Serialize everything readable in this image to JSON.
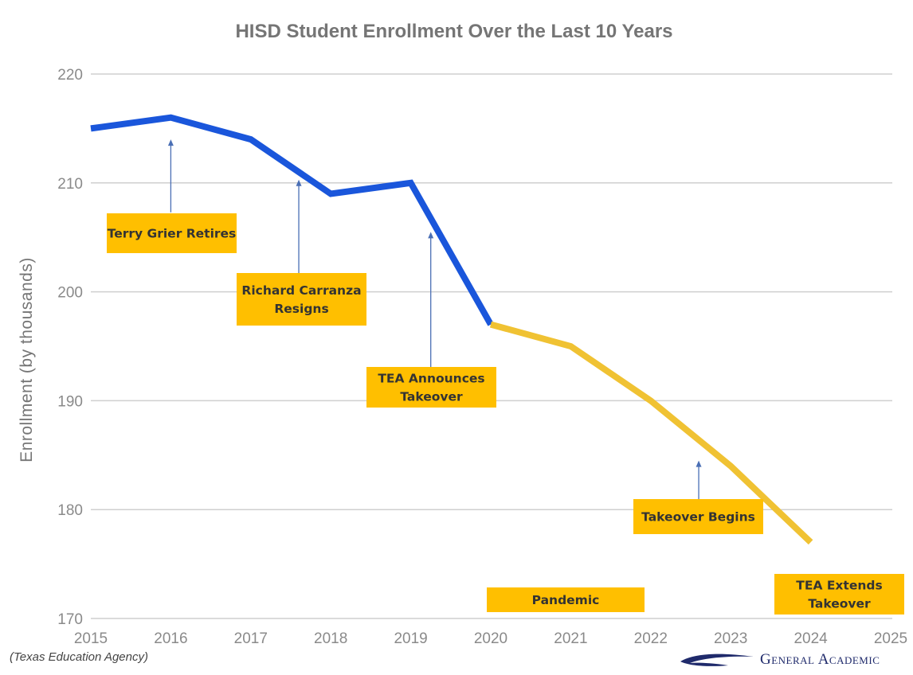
{
  "colors": {
    "pre_takeover_line": "#1a56db",
    "post_takeover_line": "#f0c233",
    "annotation_box": "#ffbf00",
    "arrow": "#4a6fb5",
    "grid": "#cfcfcf",
    "logo": "#1f2a6b"
  },
  "chart_data": {
    "type": "line",
    "title": "HISD Student Enrollment Over the Last 10 Years",
    "xlabel": "",
    "ylabel": "Enrollment (by thousands)",
    "xlim": [
      2015,
      2025
    ],
    "ylim": [
      170,
      220
    ],
    "x_ticks": [
      "2015",
      "2016",
      "2017",
      "2018",
      "2019",
      "2020",
      "2021",
      "2022",
      "2023",
      "2024",
      "2025"
    ],
    "y_ticks": [
      "170",
      "180",
      "190",
      "200",
      "210",
      "220"
    ],
    "grid": true,
    "series": [
      {
        "color_key": "pre_takeover_line",
        "x": [
          2015,
          2016,
          2017,
          2018,
          2019,
          2020
        ],
        "y": [
          215,
          216,
          214,
          209,
          210,
          197
        ]
      },
      {
        "color_key": "post_takeover_line",
        "x": [
          2020,
          2021,
          2022,
          2023,
          2024
        ],
        "y": [
          197,
          195,
          190,
          184,
          177
        ]
      }
    ],
    "annotations": [
      {
        "lines": [
          "Terry Grier Retires"
        ],
        "arrow_x": 2016,
        "arrow_top_y": 214,
        "arrow_bottom_y": 207.3
      },
      {
        "lines": [
          "Richard Carranza",
          "Resigns"
        ],
        "arrow_x": 2017.6,
        "arrow_top_y": 210.3,
        "arrow_bottom_y": 197.6
      },
      {
        "lines": [
          "TEA Announces",
          "Takeover"
        ],
        "arrow_x": 2019.25,
        "arrow_top_y": 205.5,
        "arrow_bottom_y": 190.8
      },
      {
        "lines": [
          "Takeover Begins"
        ],
        "arrow_x": 2022.6,
        "arrow_top_y": 184.5,
        "arrow_bottom_y": 180.6
      },
      {
        "lines": [
          "Pandemic"
        ]
      },
      {
        "lines": [
          "TEA Extends",
          "Takeover"
        ]
      }
    ]
  },
  "footer": {
    "source": "(Texas Education Agency)",
    "brand": "General Academic"
  }
}
